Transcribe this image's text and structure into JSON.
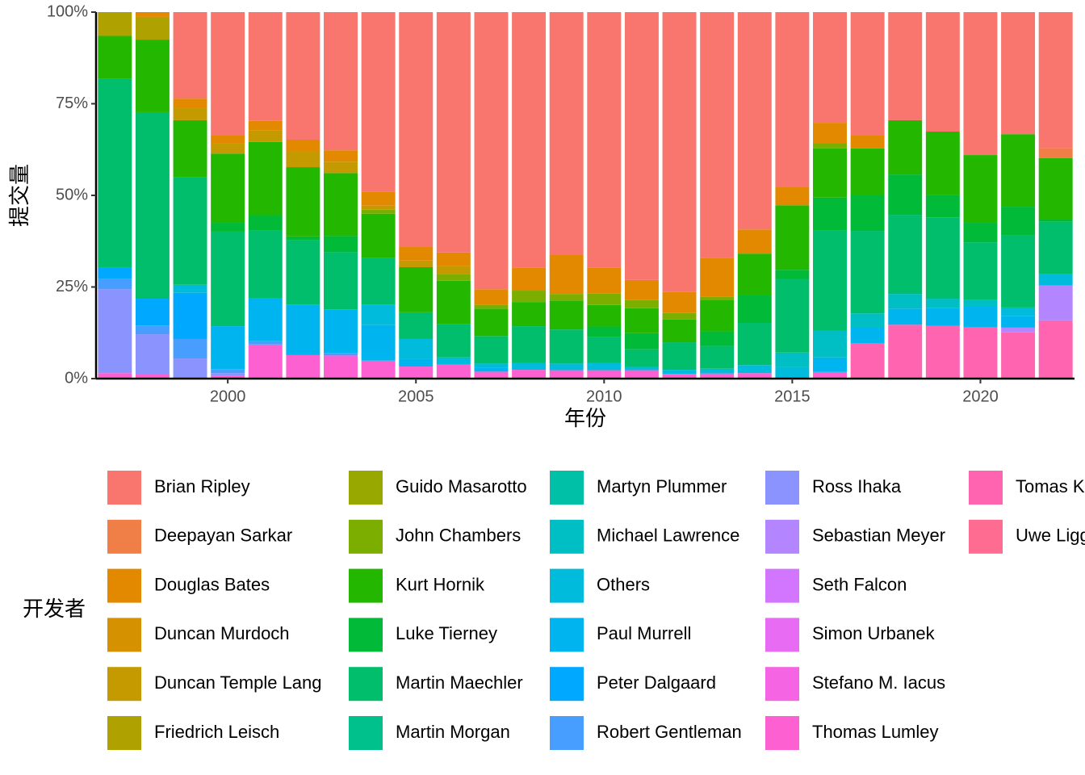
{
  "chart_data": {
    "type": "stacked_bar_percent",
    "x_label": "年份",
    "y_label": "提交量",
    "legend_title": "开发者",
    "x": [
      1997,
      1998,
      1999,
      2000,
      2001,
      2002,
      2003,
      2004,
      2005,
      2006,
      2007,
      2008,
      2009,
      2010,
      2011,
      2012,
      2013,
      2014,
      2015,
      2016,
      2017,
      2018,
      2019,
      2020,
      2021,
      2022
    ],
    "xlim": [
      1996.5,
      2022.5
    ],
    "xticks": [
      2000,
      2005,
      2010,
      2015,
      2020
    ],
    "ylim": [
      0,
      100
    ],
    "yticks": [
      {
        "value": 0,
        "label": "0%"
      },
      {
        "value": 25,
        "label": "25%"
      },
      {
        "value": 50,
        "label": "50%"
      },
      {
        "value": 75,
        "label": "75%"
      },
      {
        "value": 100,
        "label": "100%"
      }
    ],
    "series": [
      {
        "name": "Brian Ripley",
        "color": "#F8766D",
        "values": [
          0,
          0,
          23.6,
          33.7,
          29.7,
          34.8,
          37.7,
          49.1,
          64.1,
          65.6,
          75.6,
          69.8,
          66.3,
          69.8,
          73.1,
          76.4,
          67,
          59.3,
          47.6,
          30.2,
          33.7,
          29.5,
          32.6,
          39,
          33.3,
          37.2
        ]
      },
      {
        "name": "Deepayan Sarkar",
        "color": "#EF7F47",
        "values": [
          0,
          0,
          0,
          0,
          0,
          0,
          0,
          0,
          0,
          0,
          0,
          0,
          0,
          0,
          0,
          0,
          0,
          0,
          0,
          0,
          0,
          0,
          0,
          0,
          0,
          2.6
        ]
      },
      {
        "name": "Douglas Bates",
        "color": "#E38900",
        "values": [
          0,
          1.3,
          2.4,
          2,
          2.6,
          3.3,
          3.1,
          3.7,
          3.7,
          3.7,
          4.2,
          6.2,
          10.6,
          7,
          5.5,
          5.7,
          10.6,
          6.6,
          5.1,
          5.5,
          3.5,
          0,
          0,
          0,
          0,
          0
        ]
      },
      {
        "name": "Duncan Murdoch",
        "color": "#D59100",
        "values": [
          0,
          0,
          0,
          0,
          0,
          0,
          0,
          0,
          0,
          0,
          0,
          0,
          0,
          0,
          0,
          0,
          0,
          0,
          0,
          0,
          0,
          0,
          0,
          0,
          0,
          0
        ]
      },
      {
        "name": "Duncan Temple Lang",
        "color": "#C49A00",
        "values": [
          0,
          0,
          3.5,
          2.9,
          3.1,
          4.2,
          3.1,
          1.1,
          1.8,
          2.2,
          0,
          0,
          0,
          0,
          0,
          0,
          0,
          0,
          0,
          0,
          0,
          0,
          0,
          0,
          0,
          0
        ]
      },
      {
        "name": "Friedrich Leisch",
        "color": "#AFA100",
        "values": [
          6.5,
          6.2,
          0,
          0,
          0,
          0,
          0,
          0,
          0,
          0,
          0,
          0,
          0,
          0,
          0,
          0,
          0,
          0,
          0,
          0,
          0,
          0,
          0,
          0,
          0,
          0
        ]
      },
      {
        "name": "Guido Masarotto",
        "color": "#99A800",
        "values": [
          0,
          0,
          0,
          0,
          0,
          0,
          0,
          0,
          0,
          0,
          0,
          0,
          0,
          0,
          0,
          0,
          0,
          0,
          0,
          0,
          0,
          0,
          0,
          0,
          0,
          0
        ]
      },
      {
        "name": "John Chambers",
        "color": "#7CAE00",
        "values": [
          0,
          0,
          0,
          0,
          0,
          0,
          0,
          1.1,
          0,
          1.8,
          1.1,
          3.1,
          1.8,
          3.1,
          2.2,
          1.8,
          0.9,
          0,
          0,
          1.5,
          0,
          0,
          0,
          0,
          0,
          0
        ]
      },
      {
        "name": "Kurt Hornik",
        "color": "#24B700",
        "values": [
          11.7,
          19.8,
          15.6,
          18.9,
          20,
          18.9,
          17.2,
          12.1,
          12.3,
          11.9,
          7.5,
          6.6,
          7.9,
          5.9,
          6.8,
          6.2,
          8.6,
          11.2,
          17.6,
          13.4,
          12.8,
          14.8,
          17.2,
          18.5,
          19.8,
          16.7
        ]
      },
      {
        "name": "Luke Tierney",
        "color": "#00BA38",
        "values": [
          0,
          0,
          0,
          2.4,
          4.2,
          1.1,
          4.4,
          0,
          0,
          0,
          0,
          0,
          0,
          2.9,
          4.4,
          0,
          4,
          7.7,
          2.6,
          9,
          9.7,
          11,
          6.2,
          5.3,
          7.7,
          0.7
        ]
      },
      {
        "name": "Martin Maechler",
        "color": "#00BE6C",
        "values": [
          51.6,
          50.9,
          29.3,
          25.8,
          18.5,
          17.6,
          15.6,
          12.8,
          7.3,
          9,
          7.5,
          10.1,
          9.3,
          7,
          4.8,
          7.5,
          6.2,
          11.5,
          20,
          27.3,
          22.5,
          21.6,
          22.2,
          15.8,
          19.8,
          14.3
        ]
      },
      {
        "name": "Martin Morgan",
        "color": "#00C08B",
        "values": [
          0,
          0,
          0,
          0,
          0,
          0,
          0,
          0,
          0,
          0,
          0,
          0,
          0,
          0,
          0,
          0,
          0,
          0,
          0,
          0,
          0,
          0,
          0,
          0,
          0,
          0
        ]
      },
      {
        "name": "Martyn Plummer",
        "color": "#00C1A7",
        "values": [
          0,
          0,
          0,
          0,
          0,
          0,
          0,
          0,
          0,
          0,
          0,
          0,
          0,
          0,
          0,
          0,
          0,
          0,
          0,
          0,
          0,
          0,
          0,
          0,
          0,
          0
        ]
      },
      {
        "name": "Michael Lawrence",
        "color": "#00BFC4",
        "values": [
          0,
          0,
          0,
          0,
          0,
          0,
          0,
          0,
          0,
          0,
          0,
          0,
          0,
          0,
          0,
          0,
          0,
          0,
          4,
          7.3,
          3.7,
          4,
          2.6,
          1.8,
          0,
          0
        ]
      },
      {
        "name": "Others",
        "color": "#00BBDB",
        "values": [
          0,
          0,
          2.2,
          0,
          0,
          0,
          0,
          5.5,
          5.5,
          2,
          1.1,
          1.8,
          1.8,
          2,
          0.9,
          1.1,
          1.3,
          2.2,
          3.1,
          0,
          0,
          0,
          0,
          0,
          2.4,
          3.1
        ]
      },
      {
        "name": "Paul Murrell",
        "color": "#00B4EF",
        "values": [
          0,
          0,
          0,
          11.7,
          11.7,
          13.7,
          11.9,
          9.7,
          2,
          0,
          1.1,
          0,
          0,
          0,
          0,
          0,
          0,
          0,
          0,
          4,
          4.4,
          4.4,
          4.8,
          5.5,
          3.1,
          0
        ]
      },
      {
        "name": "Peter Dalgaard",
        "color": "#00A9FF",
        "values": [
          2.9,
          7.3,
          12.6,
          0,
          0,
          0,
          0,
          0,
          0,
          0,
          0,
          0,
          0,
          0,
          0,
          0,
          0,
          0,
          0,
          0,
          0,
          0,
          0,
          0,
          0,
          0
        ]
      },
      {
        "name": "Robert Gentleman",
        "color": "#489EFF",
        "values": [
          2.9,
          2.4,
          5.3,
          1.1,
          0.9,
          0,
          0.7,
          0,
          0,
          0,
          0,
          0,
          0,
          0,
          0,
          0,
          0,
          0,
          0,
          0,
          0,
          0,
          0,
          0,
          0,
          0
        ]
      },
      {
        "name": "Ross Ihaka",
        "color": "#8B93FF",
        "values": [
          22.9,
          11,
          5.5,
          0.7,
          0,
          0,
          0,
          0,
          0,
          0,
          0,
          0,
          0,
          0,
          0,
          0,
          0,
          0,
          0,
          0,
          0,
          0,
          0,
          0,
          0,
          0
        ]
      },
      {
        "name": "Sebastian Meyer",
        "color": "#B385FF",
        "values": [
          0,
          0,
          0,
          0,
          0,
          0,
          0,
          0,
          0,
          0,
          0,
          0,
          0,
          0,
          0,
          0,
          0,
          0,
          0,
          0,
          0,
          0,
          0,
          0,
          1.3,
          9.5
        ]
      },
      {
        "name": "Seth Falcon",
        "color": "#D376FF",
        "values": [
          0,
          0,
          0,
          0,
          0,
          0,
          0,
          0,
          0,
          0,
          0,
          0,
          0,
          0,
          0,
          0,
          0,
          0,
          0,
          0,
          0,
          0,
          0,
          0,
          0,
          0
        ]
      },
      {
        "name": "Simon Urbanek",
        "color": "#E76BF3",
        "values": [
          0,
          0,
          0,
          0,
          0,
          0,
          0,
          0,
          0,
          0,
          0,
          0,
          0,
          0,
          0,
          0,
          0,
          0,
          0,
          0,
          0,
          0,
          0,
          0,
          0,
          0
        ]
      },
      {
        "name": "Stefano M. Iacus",
        "color": "#F564E3",
        "values": [
          0,
          0,
          0,
          0,
          0,
          0,
          0,
          0,
          0,
          0,
          0,
          0,
          0,
          0,
          0,
          0,
          0,
          0,
          0,
          0,
          0,
          0,
          0,
          0,
          0,
          0
        ]
      },
      {
        "name": "Thomas Lumley",
        "color": "#FD61D1",
        "values": [
          1.5,
          1.1,
          0,
          0.8,
          9.3,
          6.4,
          6.3,
          4.9,
          3.3,
          3.8,
          1.9,
          2.4,
          2.3,
          2.3,
          2.3,
          1.3,
          1.4,
          1.5,
          0,
          1.8,
          0,
          0,
          0,
          0,
          0,
          0
        ]
      },
      {
        "name": "Tomas Kalibera",
        "color": "#FF64B0",
        "values": [
          0,
          0,
          0,
          0,
          0,
          0,
          0,
          0,
          0,
          0,
          0,
          0,
          0,
          0,
          0,
          0,
          0,
          0,
          0,
          0,
          9.7,
          14.7,
          14.4,
          14.1,
          12.6,
          15.9
        ]
      },
      {
        "name": "Uwe Ligges",
        "color": "#FF6C91",
        "values": [
          0,
          0,
          0,
          0,
          0,
          0,
          0,
          0,
          0,
          0,
          0,
          0,
          0,
          0,
          0,
          0,
          0,
          0,
          0,
          0,
          0,
          0,
          0,
          0,
          0,
          0
        ]
      }
    ]
  }
}
